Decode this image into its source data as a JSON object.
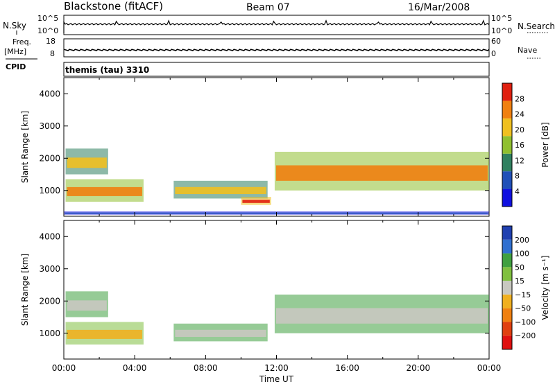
{
  "header": {
    "station": "Blackstone (fitACF)",
    "beam": "Beam 07",
    "date": "16/Mar/2008"
  },
  "left_labels": {
    "nsky": "N.Sky",
    "freq": "Freq.",
    "freq_unit": "[MHz]",
    "cpid": "CPID"
  },
  "right_labels": {
    "nsearch": "N.Search",
    "nave": "Nave"
  },
  "cpid_text": "themis (tau) 3310",
  "chart_data": [
    {
      "type": "line",
      "panel": "noise",
      "series": [
        {
          "name": "N.Sky"
        },
        {
          "name": "N.Search"
        }
      ],
      "y_ticks_left": [
        "10^5",
        "10^0"
      ],
      "y_ticks_right": [
        "10^5",
        "10^0"
      ],
      "baseline_fraction": 0.15
    },
    {
      "type": "line",
      "panel": "frequency",
      "series": [
        {
          "name": "Freq."
        },
        {
          "name": "Nave"
        }
      ],
      "y_ticks_left": [
        "18",
        "8"
      ],
      "y_ticks_right": [
        "60",
        "0"
      ],
      "freq_mhz": 10.3
    },
    {
      "type": "heatmap",
      "panel": "power",
      "ylabel": "Slant Range [km]",
      "ylim": [
        200,
        4500
      ],
      "xlim_hours": [
        0,
        24
      ],
      "y_ticks": [
        1000,
        2000,
        3000,
        4000
      ],
      "colorbar": {
        "label": "Power [dB]",
        "ticks": [
          "4",
          "8",
          "12",
          "16",
          "20",
          "24",
          "28"
        ],
        "colors": [
          "#1010e0",
          "#2050b8",
          "#308060",
          "#90c030",
          "#f0c020",
          "#f08010",
          "#e02010"
        ]
      },
      "regions": [
        {
          "t0": 0.1,
          "t1": 2.5,
          "r0": 1500,
          "r1": 2300,
          "level": 4
        },
        {
          "t0": 0.1,
          "t1": 4.5,
          "r0": 650,
          "r1": 1350,
          "level": 5
        },
        {
          "t0": 6.2,
          "t1": 11.5,
          "r0": 750,
          "r1": 1300,
          "level": 4
        },
        {
          "t0": 10.0,
          "t1": 11.7,
          "r0": 550,
          "r1": 800,
          "level": 6
        },
        {
          "t0": 11.9,
          "t1": 24,
          "r0": 1000,
          "r1": 2200,
          "level": 5
        },
        {
          "t0": 0.0,
          "t1": 24,
          "r0": 250,
          "r1": 350,
          "level": 1
        }
      ]
    },
    {
      "type": "heatmap",
      "panel": "velocity",
      "ylabel": "Slant Range [km]",
      "ylim": [
        200,
        4500
      ],
      "xlim_hours": [
        0,
        24
      ],
      "y_ticks": [
        1000,
        2000,
        3000,
        4000
      ],
      "xlabel": "Time UT",
      "x_ticks": [
        "00:00",
        "04:00",
        "08:00",
        "12:00",
        "16:00",
        "20:00",
        "00:00"
      ],
      "colorbar": {
        "label": "Velocity [m s⁻¹]",
        "ticks": [
          "200",
          "100",
          "50",
          "15",
          "−15",
          "−50",
          "−100",
          "−200"
        ],
        "colors": [
          "#2040b0",
          "#3070d0",
          "#40a040",
          "#80c040",
          "#c8c8c0",
          "#f0b020",
          "#f08010",
          "#e04010",
          "#e01010"
        ]
      },
      "regions": [
        {
          "t0": 0.1,
          "t1": 2.5,
          "r0": 1500,
          "r1": 2300,
          "level": 4
        },
        {
          "t0": 0.1,
          "t1": 4.5,
          "r0": 650,
          "r1": 1350,
          "level": 5
        },
        {
          "t0": 6.2,
          "t1": 11.5,
          "r0": 750,
          "r1": 1300,
          "level": 4
        },
        {
          "t0": 11.9,
          "t1": 24,
          "r0": 1000,
          "r1": 2200,
          "level": 4
        }
      ]
    }
  ]
}
